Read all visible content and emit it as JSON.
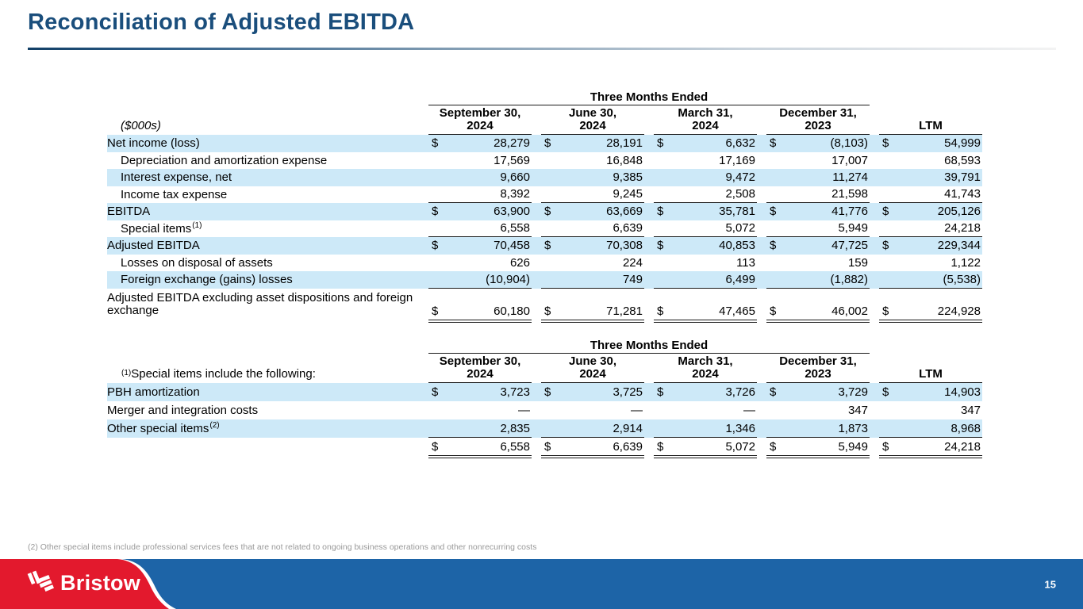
{
  "slide": {
    "title": "Reconciliation of Adjusted EBITDA",
    "footnote": "(2) Other special items include professional services fees that are not related to ongoing business operations and other nonrecurring costs",
    "page_number": "15",
    "logo_text": "Bristow",
    "logo_icon": "bristow-rotor-icon"
  },
  "colors": {
    "title_navy": "#1a4e7c",
    "row_highlight_blue": "#cde9f8",
    "footer_blue": "#1d64a7",
    "footer_red": "#e3192d",
    "rule_black": "#1a1a1a",
    "footnote_gray": "#999999"
  },
  "currency_symbol": "$",
  "table1": {
    "group_header": "Three Months Ended",
    "corner": {
      "text": "($000s)",
      "italic": true
    },
    "columns": [
      "September 30,\n2024",
      "June 30,\n2024",
      "March 31,\n2024",
      "December 31,\n2023",
      "LTM"
    ],
    "rows": [
      {
        "label": "Net income (loss)",
        "highlight": true,
        "dollar": true,
        "values": [
          "28,279",
          "28,191",
          "6,632",
          "(8,103)",
          "54,999"
        ]
      },
      {
        "label": "Depreciation and amortization expense",
        "indent": true,
        "values": [
          "17,569",
          "16,848",
          "17,169",
          "17,007",
          "68,593"
        ]
      },
      {
        "label": "Interest expense, net",
        "indent": true,
        "highlight": true,
        "values": [
          "9,660",
          "9,385",
          "9,472",
          "11,274",
          "39,791"
        ]
      },
      {
        "label": "Income tax expense",
        "indent": true,
        "rule_below": true,
        "values": [
          "8,392",
          "9,245",
          "2,508",
          "21,598",
          "41,743"
        ]
      },
      {
        "label": "EBITDA",
        "highlight": true,
        "dollar": true,
        "values": [
          "63,900",
          "63,669",
          "35,781",
          "41,776",
          "205,126"
        ]
      },
      {
        "label": "Special items ",
        "sup": "(1)",
        "indent": true,
        "rule_below": true,
        "values": [
          "6,558",
          "6,639",
          "5,072",
          "5,949",
          "24,218"
        ]
      },
      {
        "label": "Adjusted EBITDA",
        "highlight": true,
        "dollar": true,
        "values": [
          "70,458",
          "70,308",
          "40,853",
          "47,725",
          "229,344"
        ]
      },
      {
        "label": "Losses on disposal of assets",
        "indent": true,
        "values": [
          "626",
          "224",
          "113",
          "159",
          "1,122"
        ]
      },
      {
        "label": "Foreign exchange (gains) losses",
        "indent": true,
        "highlight": true,
        "rule_below": true,
        "values": [
          "(10,904)",
          "749",
          "6,499",
          "(1,882)",
          "(5,538)"
        ]
      },
      {
        "label": "Adjusted EBITDA excluding asset dispositions and foreign exchange",
        "dollar": true,
        "double_rule": true,
        "tall": true,
        "values": [
          "60,180",
          "71,281",
          "47,465",
          "46,002",
          "224,928"
        ]
      }
    ]
  },
  "table2": {
    "group_header": "Three Months Ended",
    "corner": {
      "sup": "(1)",
      "text": " Special items include the following:"
    },
    "columns": [
      "September 30,\n2024",
      "June 30,\n2024",
      "March 31,\n2024",
      "December 31,\n2023",
      "LTM"
    ],
    "rows": [
      {
        "label": "PBH amortization",
        "highlight": true,
        "dollar": true,
        "values": [
          "3,723",
          "3,725",
          "3,726",
          "3,729",
          "14,903"
        ]
      },
      {
        "label": "Merger and integration costs",
        "values": [
          "—",
          "—",
          "—",
          "347",
          "347"
        ]
      },
      {
        "label": "Other special items",
        "sup": "(2)",
        "highlight": true,
        "rule_below": true,
        "values": [
          "2,835",
          "2,914",
          "1,346",
          "1,873",
          "8,968"
        ]
      },
      {
        "label": "",
        "dollar": true,
        "double_rule": true,
        "values": [
          "6,558",
          "6,639",
          "5,072",
          "5,949",
          "24,218"
        ]
      }
    ]
  }
}
